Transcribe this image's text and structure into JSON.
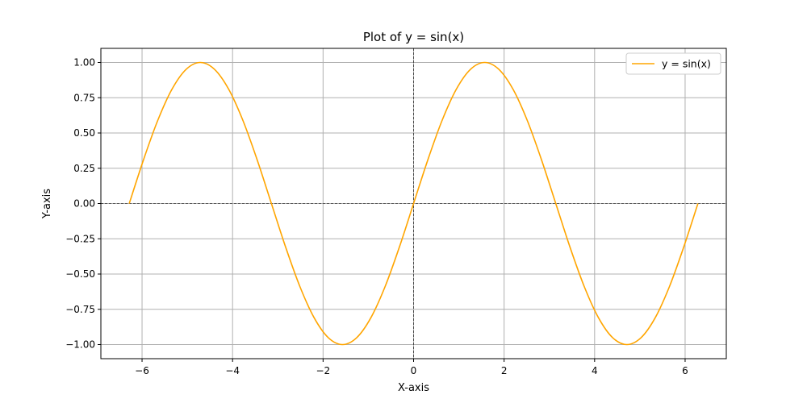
{
  "chart_data": {
    "type": "line",
    "title": "Plot of y = sin(x)",
    "xlabel": "X-axis",
    "ylabel": "Y-axis",
    "xlim": [
      -6.91,
      6.91
    ],
    "ylim": [
      -1.1,
      1.1
    ],
    "xticks": [
      -6,
      -4,
      -2,
      0,
      2,
      4,
      6
    ],
    "xtick_labels": [
      "−6",
      "−4",
      "−2",
      "0",
      "2",
      "4",
      "6"
    ],
    "yticks": [
      -1.0,
      -0.75,
      -0.5,
      -0.25,
      0.0,
      0.25,
      0.5,
      0.75,
      1.0
    ],
    "ytick_labels": [
      "−1.00",
      "−0.75",
      "−0.50",
      "−0.25",
      "0.00",
      "0.25",
      "0.50",
      "0.75",
      "1.00"
    ],
    "grid": true,
    "reference_lines": {
      "x": 0,
      "y": 0,
      "style": "dashed",
      "color": "#000000"
    },
    "legend": {
      "position": "top-right",
      "entries": [
        "y = sin(x)"
      ]
    },
    "series": [
      {
        "name": "y = sin(x)",
        "color": "#ffa500",
        "x": [
          -6.2832,
          -5.969,
          -5.6549,
          -5.3407,
          -5.0265,
          -4.7124,
          -4.3982,
          -4.0841,
          -3.7699,
          -3.4558,
          -3.1416,
          -2.8274,
          -2.5133,
          -2.1991,
          -1.885,
          -1.5708,
          -1.2566,
          -0.9425,
          -0.6283,
          -0.3142,
          0.0,
          0.3142,
          0.6283,
          0.9425,
          1.2566,
          1.5708,
          1.885,
          2.1991,
          2.5133,
          2.8274,
          3.1416,
          3.4558,
          3.7699,
          4.0841,
          4.3982,
          4.7124,
          5.0265,
          5.3407,
          5.6549,
          5.969,
          6.2832
        ],
        "y": [
          0.0,
          0.309,
          0.5878,
          0.809,
          0.9511,
          1.0,
          0.9511,
          0.809,
          0.5878,
          0.309,
          0.0,
          -0.309,
          -0.5878,
          -0.809,
          -0.9511,
          -1.0,
          -0.9511,
          -0.809,
          -0.5878,
          -0.309,
          0.0,
          0.309,
          0.5878,
          0.809,
          0.9511,
          1.0,
          0.9511,
          0.809,
          0.5878,
          0.309,
          0.0,
          -0.309,
          -0.5878,
          -0.809,
          -0.9511,
          -1.0,
          -0.9511,
          -0.809,
          -0.5878,
          -0.309,
          0.0
        ]
      }
    ]
  }
}
